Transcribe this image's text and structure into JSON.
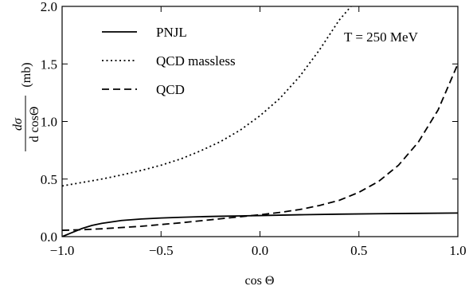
{
  "chart_data": {
    "type": "line",
    "title": "",
    "xlabel": "cos Θ",
    "ylabel": {
      "numerator": "dσ",
      "denominator": "d cosΘ",
      "unit": "(mb)"
    },
    "xlim": [
      -1.0,
      1.0
    ],
    "ylim": [
      0.0,
      2.0
    ],
    "xticks": [
      "−1.0",
      "−0.5",
      "0.0",
      "0.5",
      "1.0"
    ],
    "yticks": [
      "0.0",
      "0.5",
      "1.0",
      "1.5",
      "2.0"
    ],
    "grid": false,
    "legend_position": "top-left",
    "annotation": "T = 250 MeV",
    "series": [
      {
        "name": "PNJL",
        "style": "solid",
        "x": [
          -1.0,
          -0.95,
          -0.9,
          -0.85,
          -0.8,
          -0.7,
          -0.6,
          -0.5,
          -0.4,
          -0.3,
          -0.2,
          -0.1,
          0.0,
          0.2,
          0.4,
          0.6,
          0.8,
          1.0
        ],
        "y": [
          0.0,
          0.035,
          0.07,
          0.097,
          0.115,
          0.14,
          0.153,
          0.162,
          0.168,
          0.173,
          0.177,
          0.18,
          0.183,
          0.19,
          0.195,
          0.199,
          0.202,
          0.205
        ]
      },
      {
        "name": "QCD massless",
        "style": "dotted",
        "x": [
          -1.0,
          -0.9,
          -0.8,
          -0.7,
          -0.6,
          -0.5,
          -0.4,
          -0.3,
          -0.2,
          -0.1,
          0.0,
          0.1,
          0.2,
          0.3,
          0.4,
          0.46
        ],
        "y": [
          0.44,
          0.47,
          0.5,
          0.535,
          0.575,
          0.62,
          0.675,
          0.745,
          0.825,
          0.925,
          1.05,
          1.2,
          1.39,
          1.62,
          1.88,
          2.0
        ]
      },
      {
        "name": "QCD",
        "style": "dashed",
        "x": [
          -1.0,
          -0.9,
          -0.8,
          -0.6,
          -0.4,
          -0.2,
          0.0,
          0.1,
          0.2,
          0.3,
          0.4,
          0.5,
          0.6,
          0.7,
          0.8,
          0.9,
          1.0
        ],
        "y": [
          0.055,
          0.06,
          0.068,
          0.09,
          0.12,
          0.155,
          0.19,
          0.21,
          0.235,
          0.27,
          0.315,
          0.385,
          0.48,
          0.62,
          0.82,
          1.1,
          1.5
        ]
      }
    ]
  }
}
